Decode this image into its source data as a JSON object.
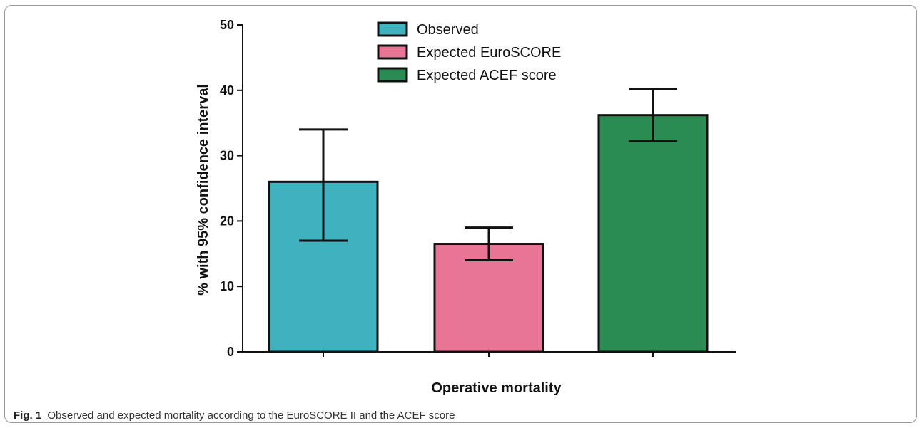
{
  "caption": {
    "label": "Fig. 1",
    "text": "Observed and expected mortality according to the EuroSCORE II and the ACEF score"
  },
  "chart_data": {
    "type": "bar",
    "categories": [
      "Observed",
      "Expected EuroSCORE",
      "Expected ACEF score"
    ],
    "values": [
      26,
      16.5,
      36.2
    ],
    "error_bars": [
      {
        "lower": 17,
        "upper": 34
      },
      {
        "lower": 14,
        "upper": 19
      },
      {
        "lower": 32.2,
        "upper": 40.2
      }
    ],
    "colors": [
      "#3fb2bf",
      "#e87595",
      "#2a8c53"
    ],
    "xlabel": "Operative mortality",
    "ylabel": "% with 95% confidence interval",
    "ylim": [
      0,
      50
    ],
    "yticks": [
      "0",
      "10",
      "20",
      "30",
      "40",
      "50"
    ],
    "grid": false,
    "legend_position": "top-center",
    "legend": [
      "Observed",
      "Expected EuroSCORE",
      "Expected ACEF score"
    ]
  }
}
